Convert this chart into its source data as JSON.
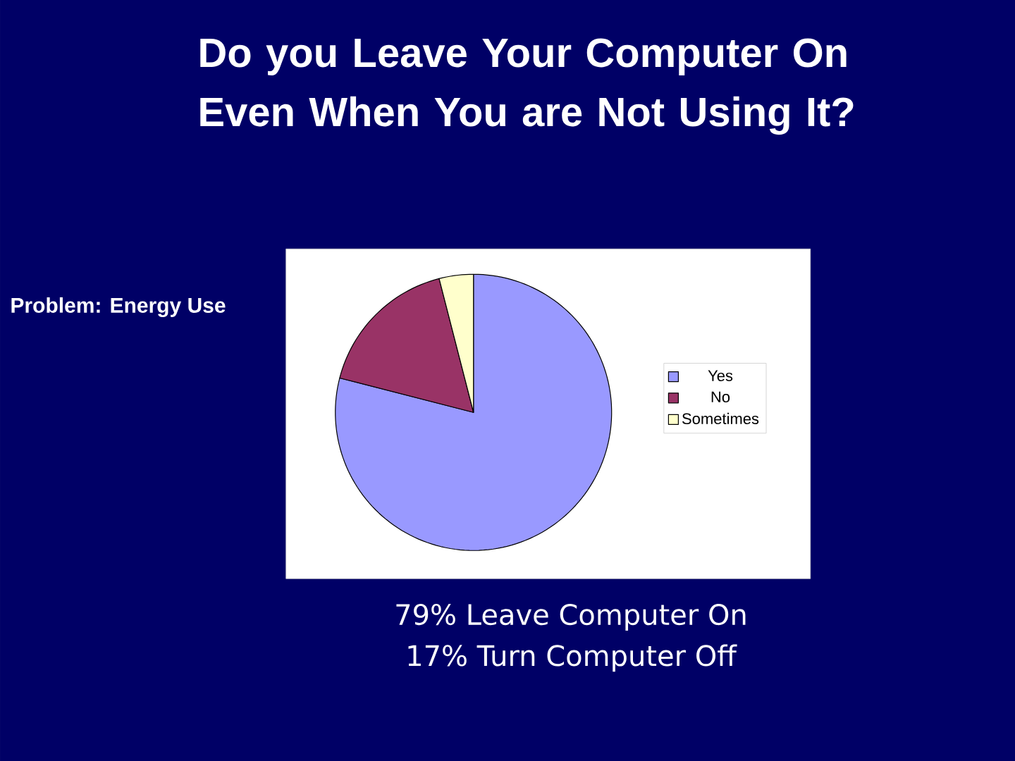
{
  "chart_data": {
    "type": "pie",
    "title": "Do you Leave Your Computer On Even When You are Not Using It?",
    "subtitle": "Problem: Energy Use",
    "categories": [
      "Yes",
      "No",
      "Sometimes"
    ],
    "values": [
      79,
      17,
      4
    ],
    "colors": [
      "#9999ff",
      "#993366",
      "#ffffcc"
    ],
    "legend": "right",
    "annotations": [
      "79% Leave Computer On",
      "17% Turn Computer Off"
    ]
  }
}
